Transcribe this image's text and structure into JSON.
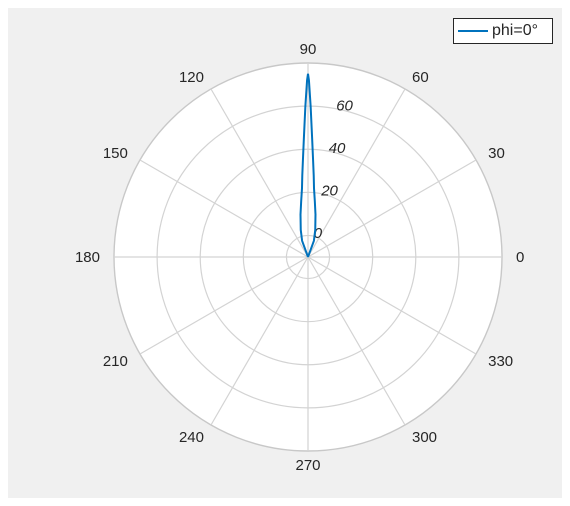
{
  "chart_data": {
    "type": "polar-line",
    "title": "",
    "theta_unit": "degrees",
    "theta_ticks": [
      0,
      30,
      60,
      90,
      120,
      150,
      180,
      210,
      240,
      270,
      300,
      330
    ],
    "theta_tick_labels": [
      "0",
      "30",
      "60",
      "90",
      "120",
      "150",
      "180",
      "210",
      "240",
      "270",
      "300",
      "330"
    ],
    "r_ticks": [
      0,
      20,
      40,
      60
    ],
    "r_tick_labels": [
      "0",
      "20",
      "40",
      "60"
    ],
    "r_lim": [
      -10,
      80
    ],
    "grid": true,
    "legend_location": "top-right",
    "series": [
      {
        "name": "phi=0°",
        "color": "#0072bd",
        "points": [
          {
            "theta": 60,
            "r": -10
          },
          {
            "theta": 70,
            "r": -2
          },
          {
            "theta": 75,
            "r": 3
          },
          {
            "theta": 80,
            "r": 10
          },
          {
            "theta": 83,
            "r": 16
          },
          {
            "theta": 85,
            "r": 22
          },
          {
            "theta": 86,
            "r": 28
          },
          {
            "theta": 87,
            "r": 35
          },
          {
            "theta": 88,
            "r": 45
          },
          {
            "theta": 89,
            "r": 60
          },
          {
            "theta": 89.7,
            "r": 72
          },
          {
            "theta": 90,
            "r": 75
          },
          {
            "theta": 90.3,
            "r": 72
          },
          {
            "theta": 91,
            "r": 60
          },
          {
            "theta": 92,
            "r": 45
          },
          {
            "theta": 93,
            "r": 35
          },
          {
            "theta": 94,
            "r": 28
          },
          {
            "theta": 95,
            "r": 22
          },
          {
            "theta": 97,
            "r": 16
          },
          {
            "theta": 100,
            "r": 10
          },
          {
            "theta": 105,
            "r": 3
          },
          {
            "theta": 110,
            "r": -2
          },
          {
            "theta": 120,
            "r": -10
          }
        ]
      }
    ]
  }
}
